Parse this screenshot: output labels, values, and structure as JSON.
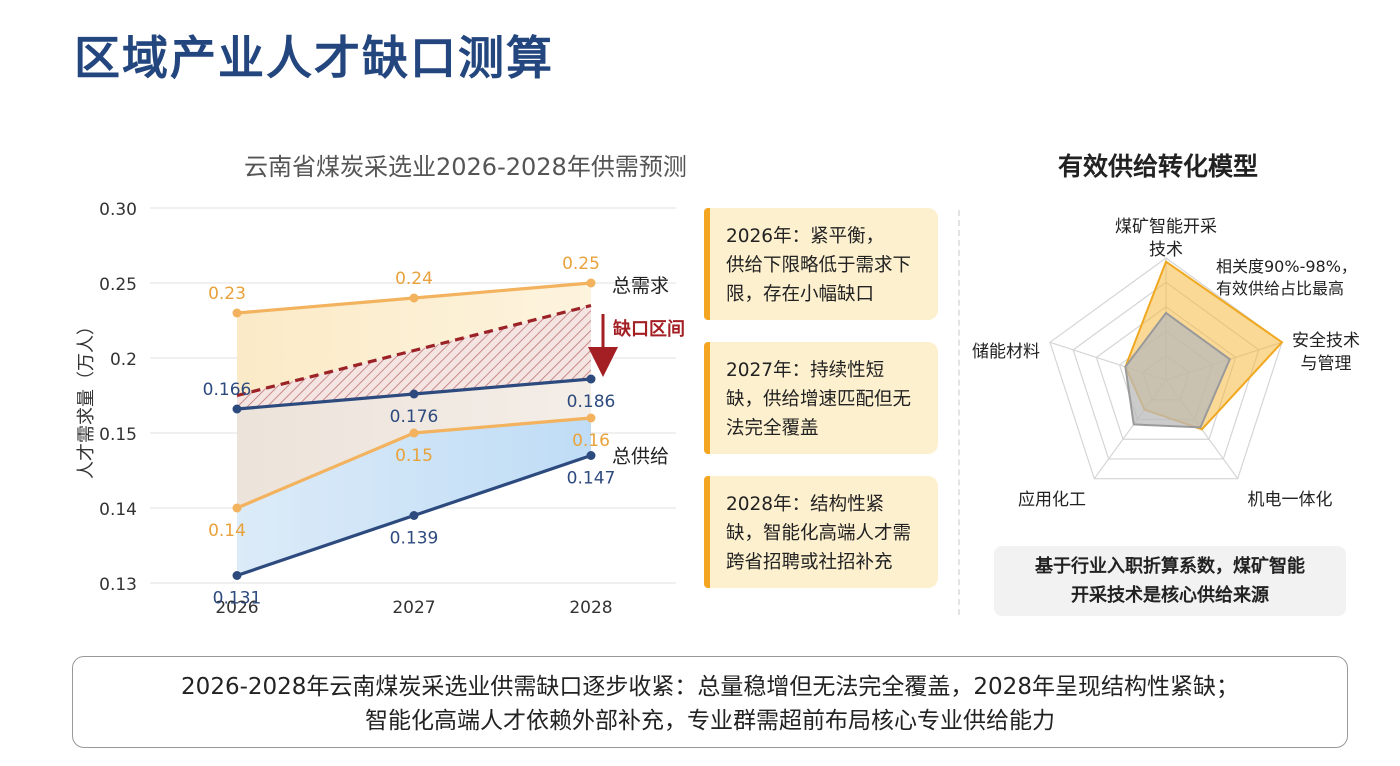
{
  "page": {
    "title": "区域产业人才缺口测算"
  },
  "chart_data": {
    "type": "line",
    "title": "云南省煤炭采选业2026-2028年供需预测",
    "ylabel": "人才需求量（万人）",
    "x": [
      "2026",
      "2027",
      "2028"
    ],
    "y_ticks": [
      "0.30",
      "0.25",
      "0.2",
      "0.15",
      "0.14",
      "0.13"
    ],
    "series": [
      {
        "name": "总需求",
        "values": [
          0.23,
          0.24,
          0.25
        ],
        "color": "#f3b25e",
        "line": "solid"
      },
      {
        "name": "",
        "values": [
          0.175,
          0.205,
          0.235
        ],
        "color": "#9b2226",
        "line": "dashed"
      },
      {
        "name": "",
        "values": [
          0.166,
          0.176,
          0.186
        ],
        "color": "#2d4a7e",
        "line": "solid"
      },
      {
        "name": "",
        "values": [
          0.14,
          0.15,
          0.16
        ],
        "color": "#f3b25e",
        "line": "solid"
      },
      {
        "name": "总供给",
        "values": [
          0.131,
          0.139,
          0.147
        ],
        "color": "#2d4a7e",
        "line": "solid"
      }
    ],
    "series_labels": [
      [
        "0.23",
        "0.24",
        "0.25"
      ],
      [],
      [
        "0.166",
        "0.176",
        "0.186"
      ],
      [
        "0.14",
        "0.15",
        "0.16"
      ],
      [
        "0.131",
        "0.139",
        "0.147"
      ]
    ],
    "gap_label": "缺口区间",
    "notes": [
      {
        "text": "2026年：紧平衡，供给下限略低于需求下限，存在小幅缺口"
      },
      {
        "text": "2027年：持续性短缺，供给增速匹配但无法完全覆盖"
      },
      {
        "text": "2028年：结构性紧缺，智能化高端人才需跨省招聘或社招补充"
      }
    ]
  },
  "radar": {
    "title": "有效供给转化模型",
    "axes": [
      "煤矿智能开采技术",
      "安全技术与管理",
      "机电一体化",
      "应用化工",
      "储能材料"
    ],
    "axis_labels": [
      [
        "煤矿智能开采",
        "技术"
      ],
      [
        "安全技术",
        "与管理"
      ],
      [
        "机电一体化"
      ],
      [
        "应用化工"
      ],
      [
        "储能材料"
      ]
    ],
    "levels": 5,
    "series": [
      {
        "values": [
          0.97,
          1.0,
          0.5,
          0.3,
          0.35
        ],
        "color": "#f5b942"
      },
      {
        "values": [
          0.55,
          0.55,
          0.48,
          0.45,
          0.35
        ],
        "color": "#b9b9b9"
      }
    ],
    "annotation": [
      "相关度90%-98%，",
      "有效供给占比最高"
    ],
    "note": [
      "基于行业入职折算系数，煤矿智能",
      "开采技术是核心供给来源"
    ]
  },
  "summary": {
    "line1": "2026-2028年云南煤炭采选业供需缺口逐步收紧：总量稳增但无法完全覆盖，2028年呈现结构性紧缺；",
    "line2": "智能化高端人才依赖外部补充，专业群需超前布局核心专业供给能力"
  }
}
